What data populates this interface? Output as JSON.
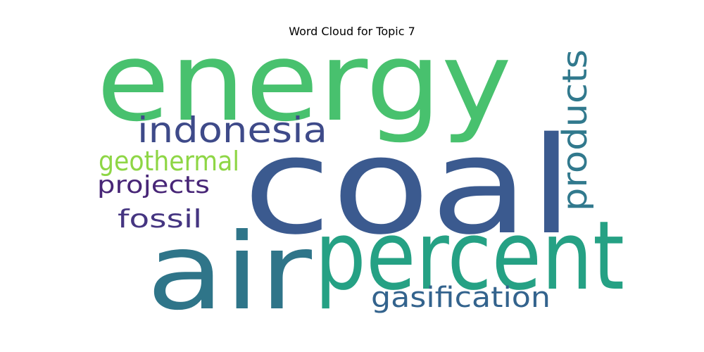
{
  "chart_data": {
    "type": "wordcloud",
    "title": "Word Cloud for Topic 7",
    "words": [
      {
        "text": "energy",
        "color": "#48c16e"
      },
      {
        "text": "coal",
        "color": "#3b5a8f"
      },
      {
        "text": "air",
        "color": "#2f7589"
      },
      {
        "text": "percent",
        "color": "#25a184"
      },
      {
        "text": "indonesia",
        "color": "#3e4a89"
      },
      {
        "text": "products",
        "color": "#31798d"
      },
      {
        "text": "geothermal",
        "color": "#8ed645"
      },
      {
        "text": "projects",
        "color": "#482677"
      },
      {
        "text": "fossil",
        "color": "#453581"
      },
      {
        "text": "gasification",
        "color": "#33638d"
      }
    ]
  }
}
